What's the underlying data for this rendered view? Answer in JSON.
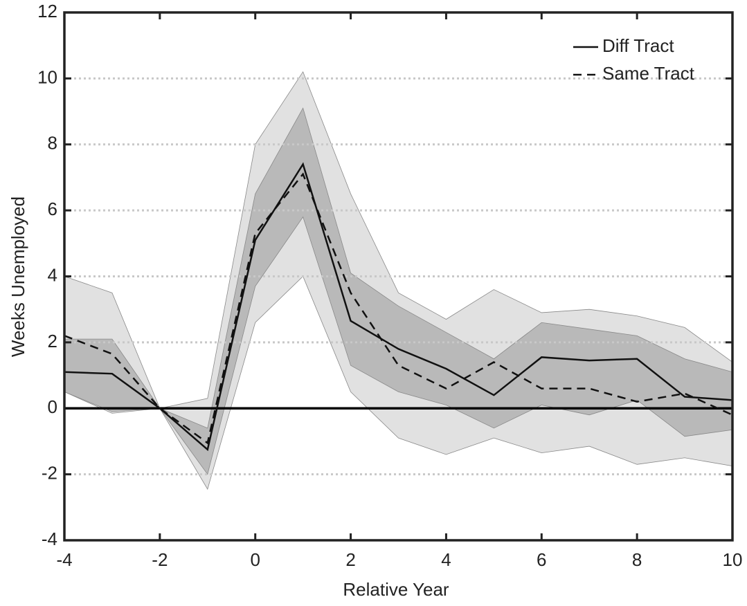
{
  "chart_data": {
    "type": "line",
    "xlabel": "Relative Year",
    "ylabel": "Weeks Unemployed",
    "x": [
      -4,
      -3,
      -2,
      -1,
      0,
      1,
      2,
      3,
      4,
      5,
      6,
      7,
      8,
      9,
      10
    ],
    "series": [
      {
        "name": "Diff Tract",
        "color": "#111111",
        "dash": "solid",
        "values": [
          1.1,
          1.05,
          0,
          -1.25,
          5.1,
          7.4,
          2.65,
          1.8,
          1.2,
          0.4,
          1.55,
          1.45,
          1.5,
          0.35,
          0.25
        ]
      },
      {
        "name": "Same Tract",
        "color": "#111111",
        "dash": "dashed",
        "values": [
          2.2,
          1.65,
          0,
          -1.05,
          5.3,
          7.1,
          3.5,
          1.3,
          0.6,
          1.4,
          0.6,
          0.6,
          0.2,
          0.45,
          -0.2
        ]
      }
    ],
    "bands": [
      {
        "color": "#dcdcdc",
        "upper": [
          4.0,
          3.5,
          0,
          0.3,
          8.0,
          10.2,
          6.5,
          3.5,
          2.7,
          3.6,
          2.9,
          3.0,
          2.8,
          2.45,
          1.4
        ],
        "lower": [
          0.5,
          -0.15,
          0,
          -2.45,
          2.6,
          4.0,
          0.5,
          -0.9,
          -1.4,
          -0.9,
          -1.35,
          -1.15,
          -1.7,
          -1.5,
          -1.75
        ]
      },
      {
        "color": "#b2b2b2",
        "upper": [
          2.1,
          2.1,
          0,
          -0.6,
          6.5,
          9.1,
          4.1,
          3.1,
          2.3,
          1.5,
          2.6,
          2.4,
          2.2,
          1.5,
          1.1
        ],
        "lower": [
          0.5,
          -0.1,
          0,
          -2.0,
          3.7,
          5.8,
          1.3,
          0.5,
          0.1,
          -0.6,
          0.1,
          -0.2,
          0.25,
          -0.85,
          -0.65
        ]
      }
    ],
    "xlim": [
      -4,
      10
    ],
    "xticks": [
      -4,
      -2,
      0,
      2,
      4,
      6,
      8,
      10
    ],
    "ylim": [
      -4,
      12
    ],
    "yticks": [
      -4,
      -2,
      0,
      2,
      4,
      6,
      8,
      10,
      12
    ],
    "grid": true,
    "zero_line": true,
    "legend": "upper right"
  }
}
